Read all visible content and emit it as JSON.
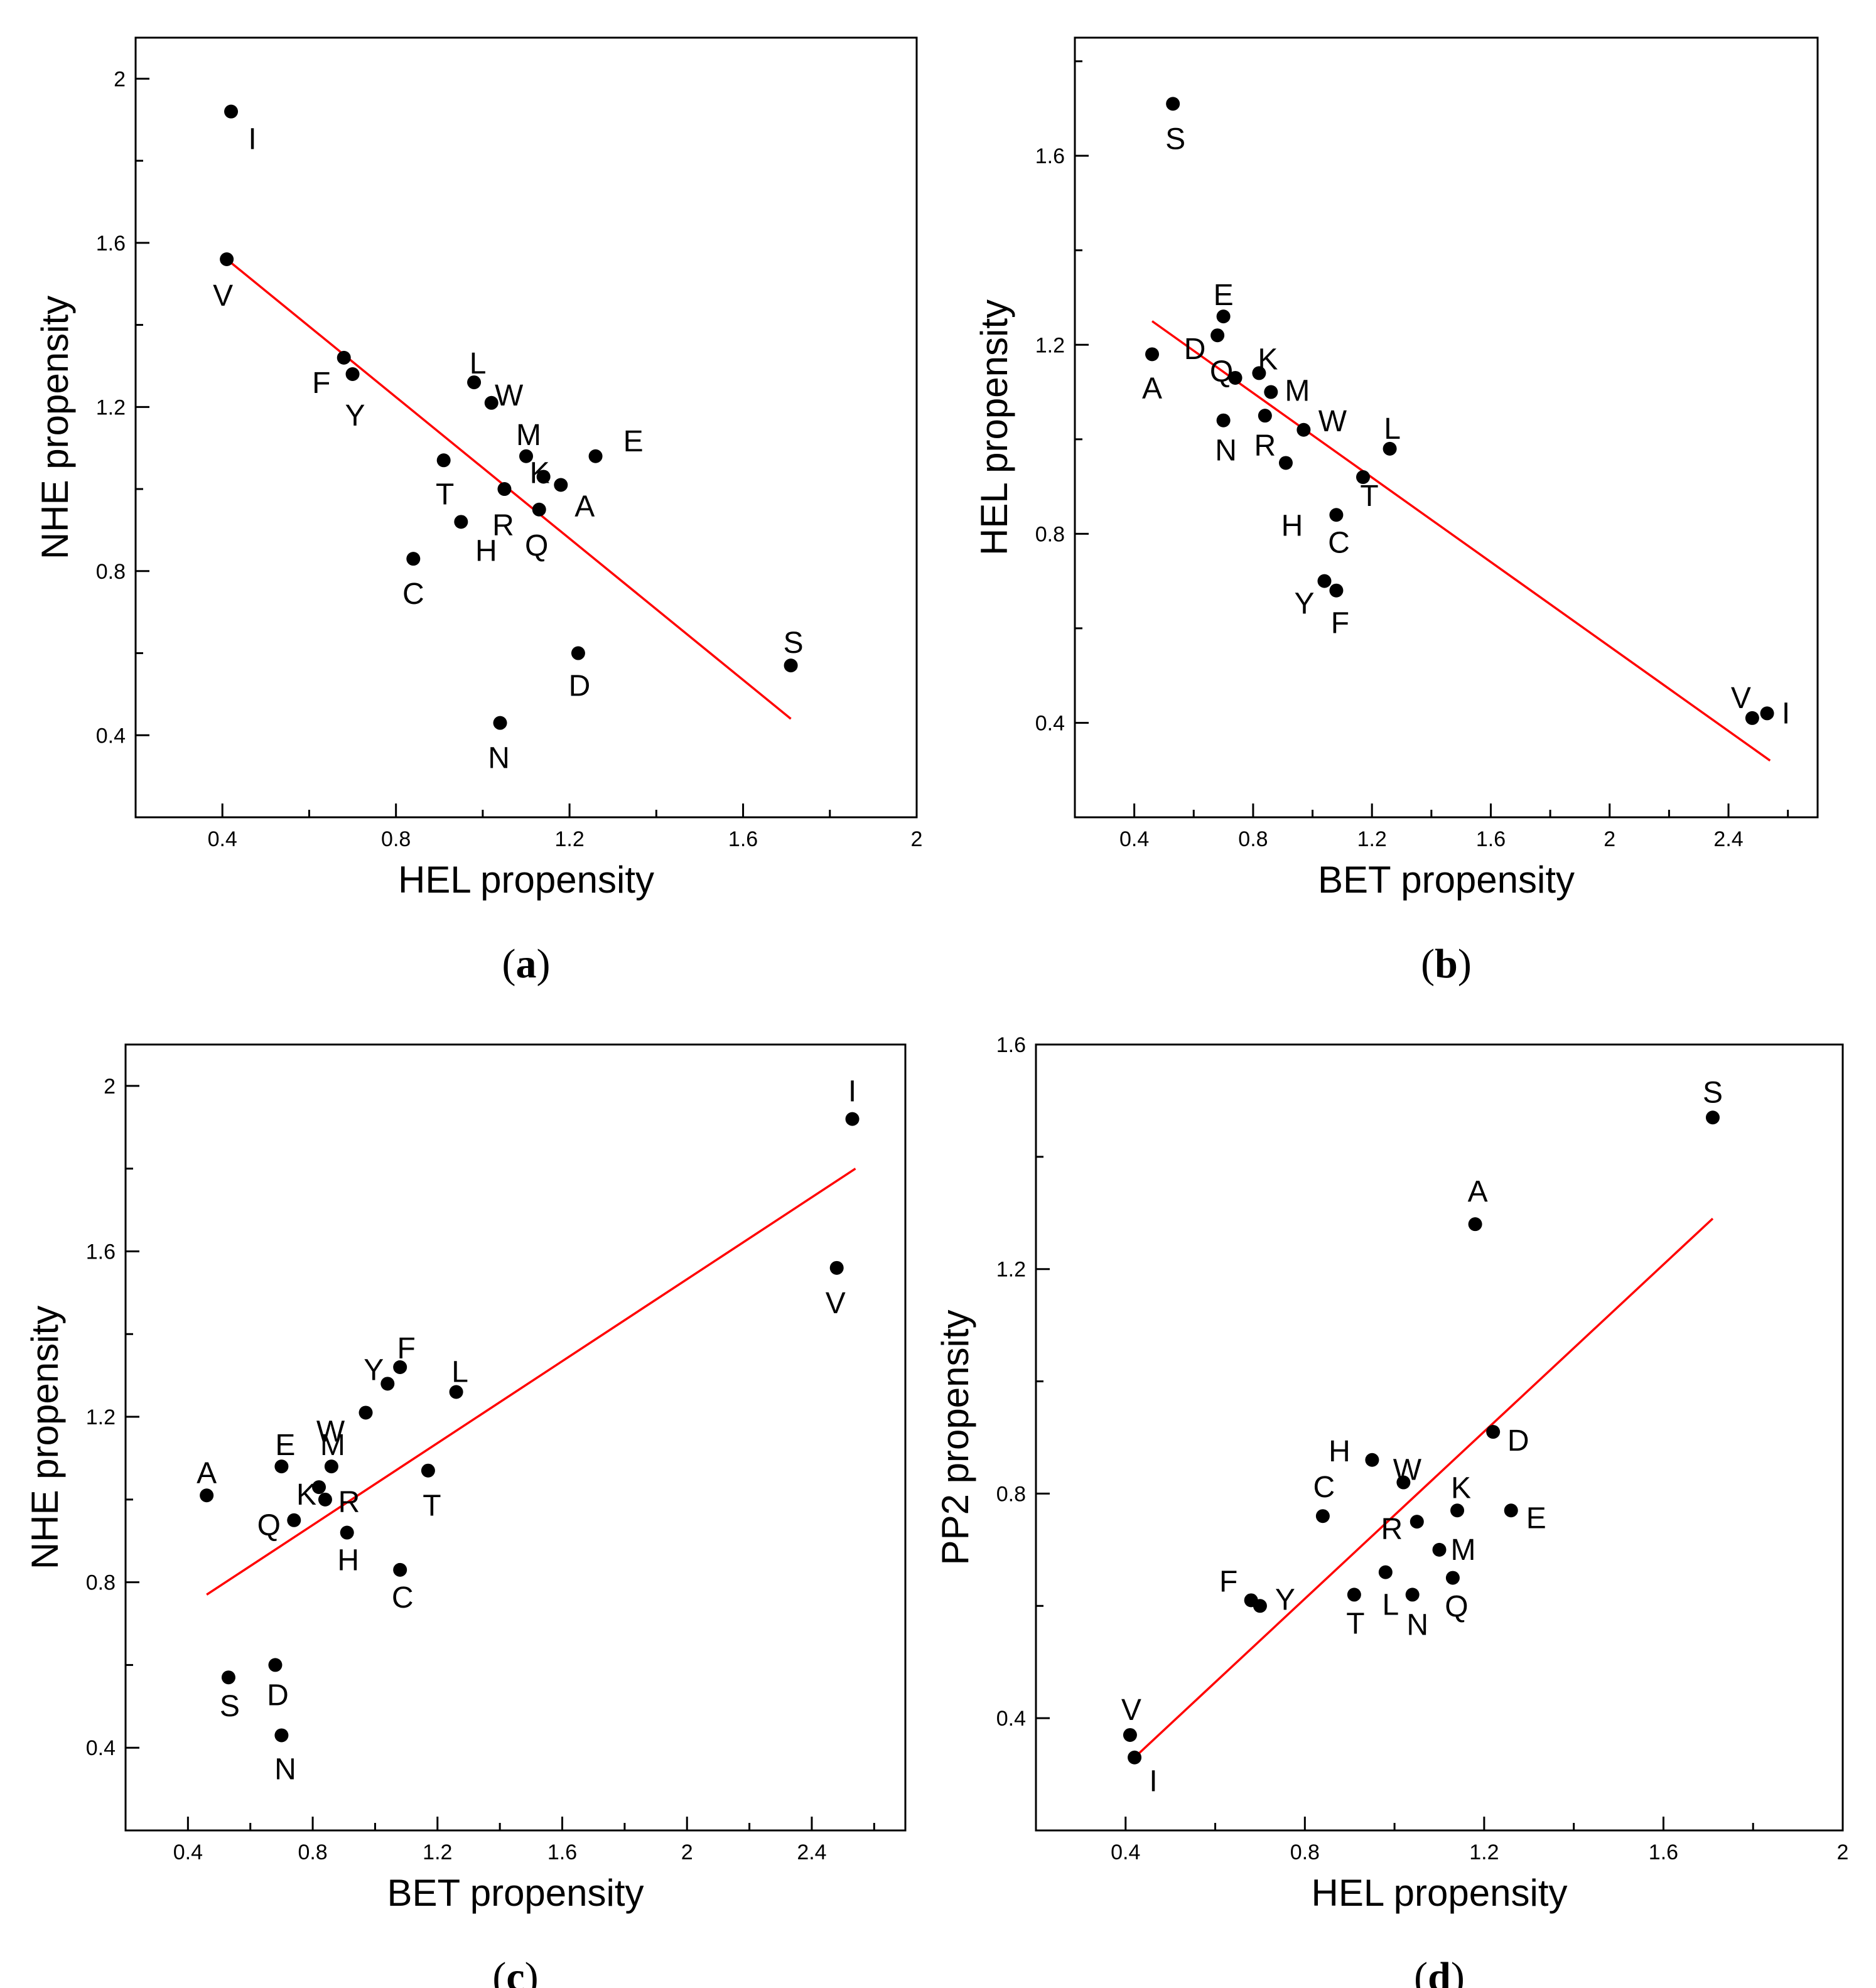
{
  "style": {
    "fit_color": "#ff0000",
    "point_color": "#000000",
    "frame_color": "#000000"
  },
  "chart_data": [
    {
      "type": "scatter",
      "panel_caption": "a",
      "xlabel": "HEL propensity",
      "ylabel": "NHE propensity",
      "xlim": [
        0.2,
        2.0
      ],
      "ylim": [
        0.2,
        2.1
      ],
      "xticks": [
        "0.4",
        "0.8",
        "1.2",
        "1.6",
        "2"
      ],
      "yticks": [
        "0.4",
        "0.8",
        "1.2",
        "1.6",
        "2"
      ],
      "points": [
        {
          "label": "I",
          "x": 0.42,
          "y": 1.92
        },
        {
          "label": "V",
          "x": 0.41,
          "y": 1.56
        },
        {
          "label": "F",
          "x": 0.68,
          "y": 1.32
        },
        {
          "label": "Y",
          "x": 0.7,
          "y": 1.28
        },
        {
          "label": "L",
          "x": 0.98,
          "y": 1.26
        },
        {
          "label": "W",
          "x": 1.02,
          "y": 1.21
        },
        {
          "label": "M",
          "x": 1.1,
          "y": 1.08
        },
        {
          "label": "E",
          "x": 1.26,
          "y": 1.08
        },
        {
          "label": "K",
          "x": 1.14,
          "y": 1.03
        },
        {
          "label": "A",
          "x": 1.18,
          "y": 1.01
        },
        {
          "label": "T",
          "x": 0.91,
          "y": 1.07
        },
        {
          "label": "R",
          "x": 1.05,
          "y": 1.0
        },
        {
          "label": "Q",
          "x": 1.13,
          "y": 0.95
        },
        {
          "label": "H",
          "x": 0.95,
          "y": 0.92
        },
        {
          "label": "C",
          "x": 0.84,
          "y": 0.83
        },
        {
          "label": "D",
          "x": 1.22,
          "y": 0.6
        },
        {
          "label": "S",
          "x": 1.71,
          "y": 0.57
        },
        {
          "label": "N",
          "x": 1.04,
          "y": 0.43
        }
      ],
      "fit": {
        "x1": 0.41,
        "y1": 1.56,
        "x2": 1.71,
        "y2": 0.44
      }
    },
    {
      "type": "scatter",
      "panel_caption": "b",
      "xlabel": "BET propensity",
      "ylabel": "HEL propensity",
      "xlim": [
        0.2,
        2.7
      ],
      "ylim": [
        0.2,
        1.85
      ],
      "xticks": [
        "0.4",
        "0.8",
        "1.2",
        "1.6",
        "2",
        "2.4"
      ],
      "yticks": [
        "0.4",
        "0.8",
        "1.2",
        "1.6"
      ],
      "points": [
        {
          "label": "S",
          "x": 0.53,
          "y": 1.71
        },
        {
          "label": "E",
          "x": 0.7,
          "y": 1.26
        },
        {
          "label": "D",
          "x": 0.68,
          "y": 1.22
        },
        {
          "label": "A",
          "x": 0.46,
          "y": 1.18
        },
        {
          "label": "K",
          "x": 0.82,
          "y": 1.14
        },
        {
          "label": "Q",
          "x": 0.74,
          "y": 1.13
        },
        {
          "label": "M",
          "x": 0.86,
          "y": 1.1
        },
        {
          "label": "N",
          "x": 0.7,
          "y": 1.04
        },
        {
          "label": "R",
          "x": 0.84,
          "y": 1.05
        },
        {
          "label": "W",
          "x": 0.97,
          "y": 1.02
        },
        {
          "label": "L",
          "x": 1.26,
          "y": 0.98
        },
        {
          "label": "H",
          "x": 0.91,
          "y": 0.95
        },
        {
          "label": "T",
          "x": 1.17,
          "y": 0.92
        },
        {
          "label": "C",
          "x": 1.08,
          "y": 0.84
        },
        {
          "label": "Y",
          "x": 1.04,
          "y": 0.7
        },
        {
          "label": "F",
          "x": 1.08,
          "y": 0.68
        },
        {
          "label": "V",
          "x": 2.48,
          "y": 0.41
        },
        {
          "label": "I",
          "x": 2.53,
          "y": 0.42
        }
      ],
      "fit": {
        "x1": 0.46,
        "y1": 1.25,
        "x2": 2.54,
        "y2": 0.32
      }
    },
    {
      "type": "scatter",
      "panel_caption": "c",
      "xlabel": "BET propensity",
      "ylabel": "NHE propensity",
      "xlim": [
        0.2,
        2.7
      ],
      "ylim": [
        0.2,
        2.1
      ],
      "xticks": [
        "0.4",
        "0.8",
        "1.2",
        "1.6",
        "2",
        "2.4"
      ],
      "yticks": [
        "0.4",
        "0.8",
        "1.2",
        "1.6",
        "2"
      ],
      "points": [
        {
          "label": "I",
          "x": 2.53,
          "y": 1.92
        },
        {
          "label": "V",
          "x": 2.48,
          "y": 1.56
        },
        {
          "label": "F",
          "x": 1.08,
          "y": 1.32
        },
        {
          "label": "Y",
          "x": 1.04,
          "y": 1.28
        },
        {
          "label": "L",
          "x": 1.26,
          "y": 1.26
        },
        {
          "label": "W",
          "x": 0.97,
          "y": 1.21
        },
        {
          "label": "E",
          "x": 0.7,
          "y": 1.08
        },
        {
          "label": "M",
          "x": 0.86,
          "y": 1.08
        },
        {
          "label": "T",
          "x": 1.17,
          "y": 1.07
        },
        {
          "label": "K",
          "x": 0.82,
          "y": 1.03
        },
        {
          "label": "A",
          "x": 0.46,
          "y": 1.01
        },
        {
          "label": "R",
          "x": 0.84,
          "y": 1.0
        },
        {
          "label": "Q",
          "x": 0.74,
          "y": 0.95
        },
        {
          "label": "H",
          "x": 0.91,
          "y": 0.92
        },
        {
          "label": "C",
          "x": 1.08,
          "y": 0.83
        },
        {
          "label": "D",
          "x": 0.68,
          "y": 0.6
        },
        {
          "label": "S",
          "x": 0.53,
          "y": 0.57
        },
        {
          "label": "N",
          "x": 0.7,
          "y": 0.43
        }
      ],
      "fit": {
        "x1": 0.46,
        "y1": 0.77,
        "x2": 2.54,
        "y2": 1.8
      }
    },
    {
      "type": "scatter",
      "panel_caption": "d",
      "xlabel": "HEL propensity",
      "ylabel": "PP2 propensity",
      "xlim": [
        0.2,
        2.0
      ],
      "ylim": [
        0.2,
        1.6
      ],
      "xticks": [
        "0.4",
        "0.8",
        "1.2",
        "1.6",
        "2"
      ],
      "yticks": [
        "0.4",
        "0.8",
        "1.2",
        "1.6"
      ],
      "points": [
        {
          "label": "S",
          "x": 1.71,
          "y": 1.47
        },
        {
          "label": "A",
          "x": 1.18,
          "y": 1.28
        },
        {
          "label": "D",
          "x": 1.22,
          "y": 0.91
        },
        {
          "label": "H",
          "x": 0.95,
          "y": 0.86
        },
        {
          "label": "W",
          "x": 1.02,
          "y": 0.82
        },
        {
          "label": "K",
          "x": 1.14,
          "y": 0.77
        },
        {
          "label": "E",
          "x": 1.26,
          "y": 0.77
        },
        {
          "label": "C",
          "x": 0.84,
          "y": 0.76
        },
        {
          "label": "R",
          "x": 1.05,
          "y": 0.75
        },
        {
          "label": "M",
          "x": 1.1,
          "y": 0.7
        },
        {
          "label": "L",
          "x": 0.98,
          "y": 0.66
        },
        {
          "label": "Q",
          "x": 1.13,
          "y": 0.65
        },
        {
          "label": "T",
          "x": 0.91,
          "y": 0.62
        },
        {
          "label": "N",
          "x": 1.04,
          "y": 0.62
        },
        {
          "label": "F",
          "x": 0.68,
          "y": 0.61
        },
        {
          "label": "Y",
          "x": 0.7,
          "y": 0.6
        },
        {
          "label": "V",
          "x": 0.41,
          "y": 0.37
        },
        {
          "label": "I",
          "x": 0.42,
          "y": 0.33
        }
      ],
      "fit": {
        "x1": 0.42,
        "y1": 0.33,
        "x2": 1.71,
        "y2": 1.29
      }
    }
  ]
}
